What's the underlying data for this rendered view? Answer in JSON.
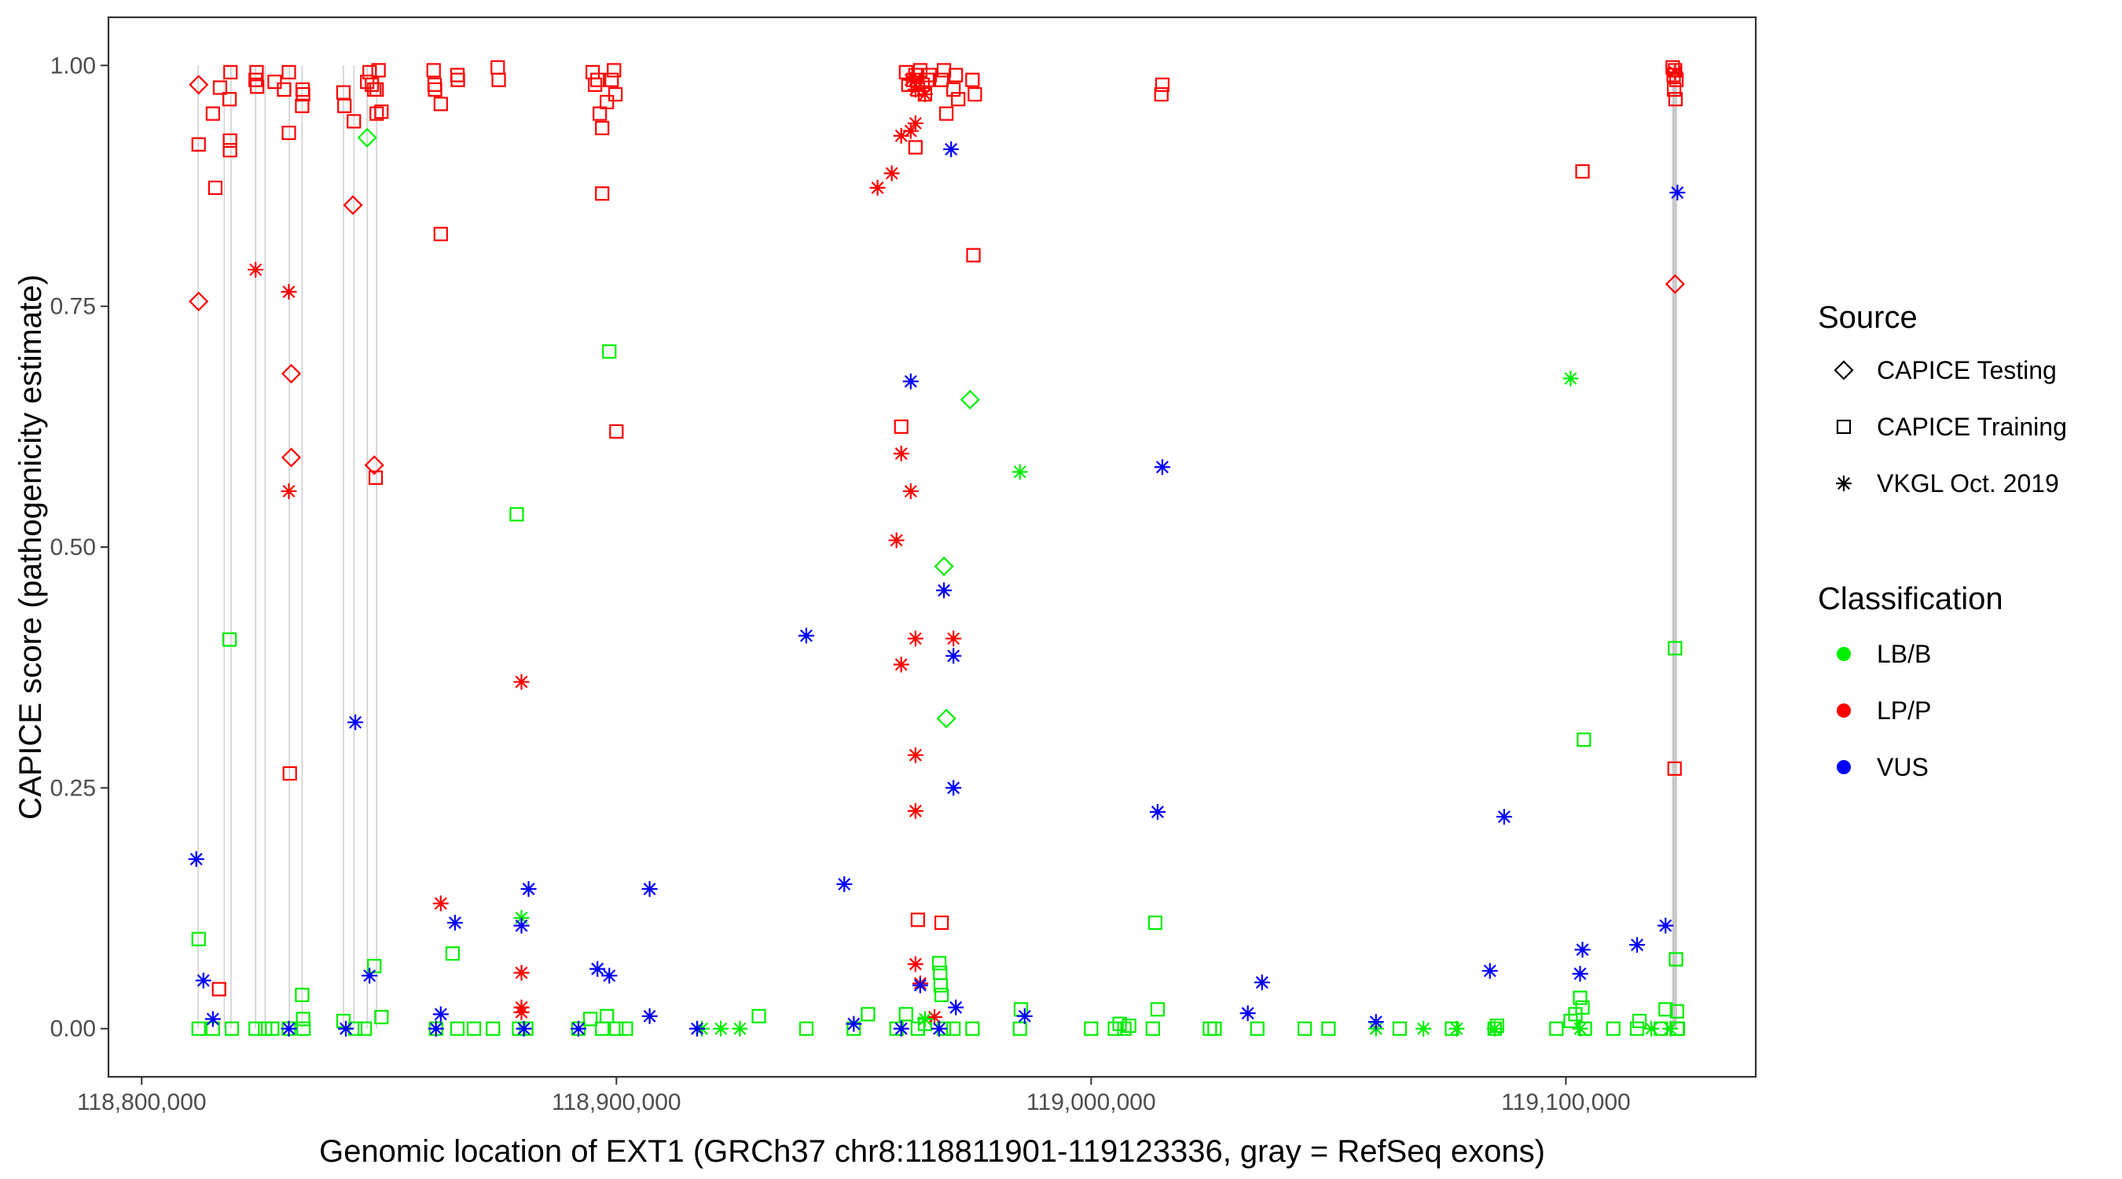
{
  "chart_data": {
    "type": "scatter",
    "title": "",
    "xlabel": "Genomic location of EXT1 (GRCh37 chr8:118811901-119123336, gray = RefSeq exons)",
    "ylabel": "CAPICE score (pathogenicity estimate)",
    "xlim": [
      118793000,
      119140000
    ],
    "ylim": [
      -0.05,
      1.05
    ],
    "x_ticks": [
      118800000,
      118900000,
      119000000,
      119100000
    ],
    "x_tick_labels": [
      "118,800,000",
      "118,900,000",
      "119,000,000",
      "119,100,000"
    ],
    "y_ticks": [
      0,
      0.25,
      0.5,
      0.75,
      1
    ],
    "y_tick_labels": [
      "0.00",
      "0.25",
      "0.50",
      "0.75",
      "1.00"
    ],
    "exons": [
      118811900,
      118817400,
      118818800,
      118824000,
      118826000,
      118831100,
      118833800,
      118842500,
      118844700,
      118847500,
      118849500,
      119122500,
      119123000,
      119123300
    ],
    "legend": {
      "source_title": "Source",
      "source_items": [
        {
          "label": "CAPICE Testing",
          "shape": "diamond"
        },
        {
          "label": "CAPICE Training",
          "shape": "square"
        },
        {
          "label": "VKGL Oct. 2019",
          "shape": "asterisk"
        }
      ],
      "class_title": "Classification",
      "class_items": [
        {
          "label": "LB/B",
          "color": "#00ee00"
        },
        {
          "label": "LP/P",
          "color": "#ff0000"
        },
        {
          "label": "VUS",
          "color": "#0000ff"
        }
      ]
    },
    "colors": {
      "LB/B": "#00ee00",
      "LP/P": "#ff0000",
      "VUS": "#0000ff"
    },
    "series": [
      {
        "name": "CAPICE Testing",
        "shape": "diamond",
        "class": "LP/P",
        "points": [
          [
            118812000,
            0.98
          ],
          [
            118812000,
            0.755
          ],
          [
            118831500,
            0.68
          ],
          [
            118831500,
            0.593
          ],
          [
            118844500,
            0.855
          ],
          [
            118849000,
            0.585
          ],
          [
            119123000,
            0.773
          ]
        ]
      },
      {
        "name": "CAPICE Testing",
        "shape": "diamond",
        "class": "LB/B",
        "points": [
          [
            118847500,
            0.925
          ],
          [
            118969000,
            0.48
          ],
          [
            118969500,
            0.322
          ],
          [
            118974500,
            0.653
          ]
        ]
      },
      {
        "name": "CAPICE Training",
        "shape": "square",
        "class": "LP/P",
        "points": [
          [
            118812000,
            0.918
          ],
          [
            118815000,
            0.95
          ],
          [
            118816500,
            0.977
          ],
          [
            118818500,
            0.965
          ],
          [
            118818700,
            0.993
          ],
          [
            118818600,
            0.922
          ],
          [
            118818600,
            0.912
          ],
          [
            118824000,
            0.985
          ],
          [
            118824200,
            0.993
          ],
          [
            118824300,
            0.978
          ],
          [
            118828000,
            0.983
          ],
          [
            118830000,
            0.975
          ],
          [
            118831000,
            0.993
          ],
          [
            118831000,
            0.93
          ],
          [
            118833800,
            0.958
          ],
          [
            118833900,
            0.975
          ],
          [
            118834000,
            0.97
          ],
          [
            118842500,
            0.972
          ],
          [
            118842700,
            0.958
          ],
          [
            118844700,
            0.942
          ],
          [
            118847500,
            0.983
          ],
          [
            118848000,
            0.993
          ],
          [
            118848500,
            0.98
          ],
          [
            118849000,
            0.975
          ],
          [
            118849500,
            0.95
          ],
          [
            118849500,
            0.975
          ],
          [
            118849900,
            0.995
          ],
          [
            118850500,
            0.952
          ],
          [
            118861500,
            0.995
          ],
          [
            118861700,
            0.98
          ],
          [
            118861800,
            0.975
          ],
          [
            118863000,
            0.96
          ],
          [
            118866500,
            0.99
          ],
          [
            118866600,
            0.985
          ],
          [
            118875000,
            0.998
          ],
          [
            118875200,
            0.985
          ],
          [
            118895000,
            0.993
          ],
          [
            118895500,
            0.98
          ],
          [
            118896000,
            0.985
          ],
          [
            118896500,
            0.95
          ],
          [
            118897000,
            0.935
          ],
          [
            118898000,
            0.962
          ],
          [
            118899000,
            0.985
          ],
          [
            118899500,
            0.995
          ],
          [
            118899800,
            0.97
          ],
          [
            118897000,
            0.867
          ],
          [
            118900000,
            0.62
          ],
          [
            118815500,
            0.873
          ],
          [
            118863000,
            0.825
          ],
          [
            118831200,
            0.265
          ],
          [
            118849300,
            0.572
          ],
          [
            118816300,
            0.041
          ],
          [
            118961000,
            0.993
          ],
          [
            118961500,
            0.98
          ],
          [
            118962500,
            0.985
          ],
          [
            118963000,
            0.99
          ],
          [
            118963500,
            0.975
          ],
          [
            118964000,
            0.995
          ],
          [
            118964500,
            0.98
          ],
          [
            118965000,
            0.97
          ],
          [
            118965500,
            0.985
          ],
          [
            118966000,
            0.99
          ],
          [
            118968500,
            0.985
          ],
          [
            118969000,
            0.995
          ],
          [
            118969500,
            0.95
          ],
          [
            118971000,
            0.975
          ],
          [
            118971500,
            0.99
          ],
          [
            118972000,
            0.965
          ],
          [
            118975000,
            0.985
          ],
          [
            118975500,
            0.97
          ],
          [
            118963000,
            0.915
          ],
          [
            118975200,
            0.803
          ],
          [
            118960000,
            0.625
          ],
          [
            118963500,
            0.113
          ],
          [
            118968500,
            0.11
          ],
          [
            119103500,
            0.89
          ],
          [
            119015000,
            0.98
          ],
          [
            119014800,
            0.97
          ],
          [
            119122500,
            0.998
          ],
          [
            119122700,
            0.99
          ],
          [
            119123000,
            0.995
          ],
          [
            119123300,
            0.985
          ],
          [
            119122800,
            0.975
          ],
          [
            119123100,
            0.965
          ],
          [
            119122900,
            0.27
          ]
        ]
      },
      {
        "name": "CAPICE Training",
        "shape": "square",
        "class": "LB/B",
        "points": [
          [
            118812000,
            0.093
          ],
          [
            118812000,
            0.0
          ],
          [
            118815000,
            0.0
          ],
          [
            118818500,
            0.404
          ],
          [
            118819000,
            0.0
          ],
          [
            118824000,
            0.0
          ],
          [
            118826000,
            0.0
          ],
          [
            118827500,
            0.0
          ],
          [
            118831000,
            0.0
          ],
          [
            118833800,
            0.035
          ],
          [
            118834000,
            0.01
          ],
          [
            118834100,
            0.0
          ],
          [
            118842500,
            0.008
          ],
          [
            118845000,
            0.0
          ],
          [
            118847000,
            0.0
          ],
          [
            118849000,
            0.065
          ],
          [
            118850500,
            0.012
          ],
          [
            118862000,
            0.0
          ],
          [
            118865500,
            0.078
          ],
          [
            118866500,
            0.0
          ],
          [
            118870000,
            0.0
          ],
          [
            118874000,
            0.0
          ],
          [
            118879000,
            0.534
          ],
          [
            118879500,
            0.0
          ],
          [
            118881000,
            0.0
          ],
          [
            118892000,
            0.0
          ],
          [
            118894500,
            0.01
          ],
          [
            118897000,
            0.0
          ],
          [
            118898000,
            0.013
          ],
          [
            118898500,
            0.703
          ],
          [
            118900000,
            0.0
          ],
          [
            118902000,
            0.0
          ],
          [
            118930000,
            0.013
          ],
          [
            118940000,
            0.0
          ],
          [
            118950000,
            0.0
          ],
          [
            118953000,
            0.015
          ],
          [
            118959000,
            0.0
          ],
          [
            118961000,
            0.015
          ],
          [
            118963500,
            0.0
          ],
          [
            118965000,
            0.005
          ],
          [
            118968000,
            0.068
          ],
          [
            118968200,
            0.058
          ],
          [
            118968300,
            0.045
          ],
          [
            118968500,
            0.035
          ],
          [
            118969000,
            0.0
          ],
          [
            118971000,
            0.0
          ],
          [
            118975000,
            0.0
          ],
          [
            118985000,
            0.0
          ],
          [
            118985200,
            0.02
          ],
          [
            119000000,
            0.0
          ],
          [
            119005000,
            0.0
          ],
          [
            119006000,
            0.005
          ],
          [
            119007000,
            0.0
          ],
          [
            119008000,
            0.003
          ],
          [
            119013000,
            0.0
          ],
          [
            119013500,
            0.11
          ],
          [
            119014000,
            0.02
          ],
          [
            119025000,
            0.0
          ],
          [
            119026000,
            0.0
          ],
          [
            119035000,
            0.0
          ],
          [
            119045000,
            0.0
          ],
          [
            119050000,
            0.0
          ],
          [
            119065000,
            0.0
          ],
          [
            119076000,
            0.0
          ],
          [
            119085000,
            0.0
          ],
          [
            119085500,
            0.003
          ],
          [
            119098000,
            0.0
          ],
          [
            119101000,
            0.008
          ],
          [
            119102000,
            0.015
          ],
          [
            119103000,
            0.032
          ],
          [
            119103500,
            0.022
          ],
          [
            119103800,
            0.3
          ],
          [
            119104000,
            0.0
          ],
          [
            119110000,
            0.0
          ],
          [
            119115000,
            0.0
          ],
          [
            119115500,
            0.008
          ],
          [
            119120000,
            0.0
          ],
          [
            119121000,
            0.02
          ],
          [
            119123000,
            0.395
          ],
          [
            119123200,
            0.072
          ],
          [
            119123400,
            0.018
          ],
          [
            119123500,
            0.0
          ],
          [
            119123600,
            0.0
          ]
        ]
      },
      {
        "name": "VKGL Oct. 2019",
        "shape": "asterisk",
        "class": "LP/P",
        "points": [
          [
            118824000,
            0.788
          ],
          [
            118831000,
            0.765
          ],
          [
            118831000,
            0.558
          ],
          [
            118863000,
            0.13
          ],
          [
            118880000,
            0.36
          ],
          [
            118880000,
            0.058
          ],
          [
            118880000,
            0.022
          ],
          [
            118880000,
            0.017
          ],
          [
            118955000,
            0.873
          ],
          [
            118958000,
            0.888
          ],
          [
            118960000,
            0.927
          ],
          [
            118962000,
            0.932
          ],
          [
            118963000,
            0.94
          ],
          [
            118962000,
            0.985
          ],
          [
            118963000,
            0.975
          ],
          [
            118965000,
            0.97
          ],
          [
            118959000,
            0.507
          ],
          [
            118960000,
            0.597
          ],
          [
            118962000,
            0.558
          ],
          [
            118963000,
            0.405
          ],
          [
            118960000,
            0.378
          ],
          [
            118963000,
            0.284
          ],
          [
            118963000,
            0.226
          ],
          [
            118963000,
            0.067
          ],
          [
            118964000,
            0.047
          ],
          [
            118967000,
            0.012
          ],
          [
            118971000,
            0.405
          ],
          [
            119123000,
            0.993
          ]
        ]
      },
      {
        "name": "VKGL Oct. 2019",
        "shape": "asterisk",
        "class": "LB/B",
        "points": [
          [
            118880000,
            0.115
          ],
          [
            118918000,
            0.0
          ],
          [
            118922000,
            0.0
          ],
          [
            118926000,
            0.0
          ],
          [
            118965000,
            0.01
          ],
          [
            118985000,
            0.578
          ],
          [
            119060000,
            0.0
          ],
          [
            119070000,
            0.0
          ],
          [
            119077000,
            0.0
          ],
          [
            119085000,
            0.0
          ],
          [
            119101000,
            0.675
          ],
          [
            119103000,
            0.0
          ],
          [
            119118000,
            0.0
          ],
          [
            119122000,
            0.0
          ]
        ]
      },
      {
        "name": "VKGL Oct. 2019",
        "shape": "asterisk",
        "class": "VUS",
        "points": [
          [
            118811500,
            0.176
          ],
          [
            118813000,
            0.05
          ],
          [
            118815000,
            0.01
          ],
          [
            118831000,
            0.0
          ],
          [
            118843000,
            0.0
          ],
          [
            118845000,
            0.318
          ],
          [
            118848000,
            0.055
          ],
          [
            118862000,
            0.0
          ],
          [
            118863000,
            0.015
          ],
          [
            118866000,
            0.11
          ],
          [
            118880000,
            0.107
          ],
          [
            118880500,
            0.0
          ],
          [
            118881500,
            0.145
          ],
          [
            118892000,
            0.0
          ],
          [
            118896000,
            0.062
          ],
          [
            118898500,
            0.055
          ],
          [
            118907000,
            0.145
          ],
          [
            118907000,
            0.013
          ],
          [
            118917000,
            0.0
          ],
          [
            118940000,
            0.408
          ],
          [
            118948000,
            0.15
          ],
          [
            118950000,
            0.005
          ],
          [
            118962000,
            0.672
          ],
          [
            118960000,
            0.0
          ],
          [
            118964000,
            0.045
          ],
          [
            118968000,
            0.0
          ],
          [
            118969000,
            0.455
          ],
          [
            118970500,
            0.913
          ],
          [
            118971000,
            0.387
          ],
          [
            118971000,
            0.25
          ],
          [
            118971500,
            0.022
          ],
          [
            118986000,
            0.013
          ],
          [
            119014000,
            0.225
          ],
          [
            119015000,
            0.583
          ],
          [
            119033000,
            0.016
          ],
          [
            119036000,
            0.048
          ],
          [
            119060000,
            0.007
          ],
          [
            119084000,
            0.06
          ],
          [
            119087000,
            0.22
          ],
          [
            119103500,
            0.082
          ],
          [
            119103000,
            0.057
          ],
          [
            119115000,
            0.087
          ],
          [
            119121000,
            0.107
          ],
          [
            119123500,
            0.868
          ]
        ]
      }
    ]
  }
}
